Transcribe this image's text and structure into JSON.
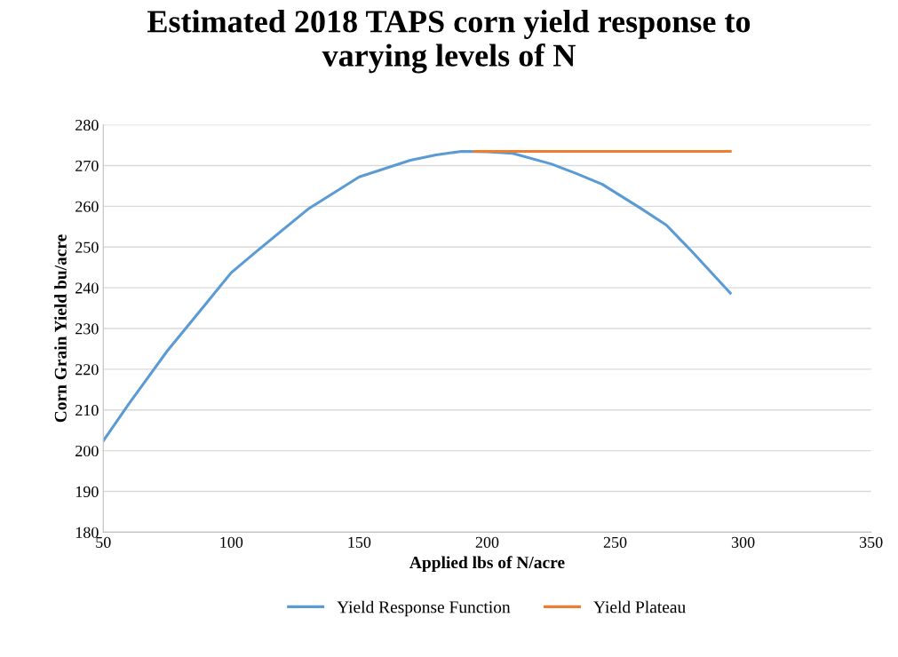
{
  "chart_data": {
    "type": "line",
    "title": "Estimated 2018 TAPS corn yield response to\nvarying levels of N",
    "xlabel": "Applied lbs of N/acre",
    "ylabel": "Corn Grain Yield bu/acre",
    "xlim": [
      50,
      350
    ],
    "xticks": [
      50,
      100,
      150,
      200,
      250,
      300,
      350
    ],
    "ylim": [
      180,
      280
    ],
    "yticks": [
      180,
      190,
      200,
      210,
      220,
      230,
      240,
      250,
      260,
      270,
      280
    ],
    "grid": "y",
    "legend": "bottom",
    "marker": "none",
    "line_style": "solid",
    "series": [
      {
        "name": "Yield Response Function",
        "color": "#5b9bd5",
        "x": [
          50,
          60,
          75,
          90,
          100,
          110,
          130,
          150,
          170,
          180,
          190,
          200,
          210,
          225,
          235,
          245,
          260,
          270,
          280,
          295
        ],
        "values": [
          202.4,
          211.5,
          224.5,
          236,
          243.7,
          249,
          259.3,
          267.2,
          271.3,
          272.6,
          273.5,
          273.4,
          273,
          270.4,
          268,
          265.4,
          259.5,
          255.4,
          248.9,
          238.7
        ]
      },
      {
        "name": "Yield Plateau",
        "color": "#ed7d31",
        "x": [
          195,
          295
        ],
        "values": [
          273.5,
          273.5
        ]
      }
    ]
  }
}
